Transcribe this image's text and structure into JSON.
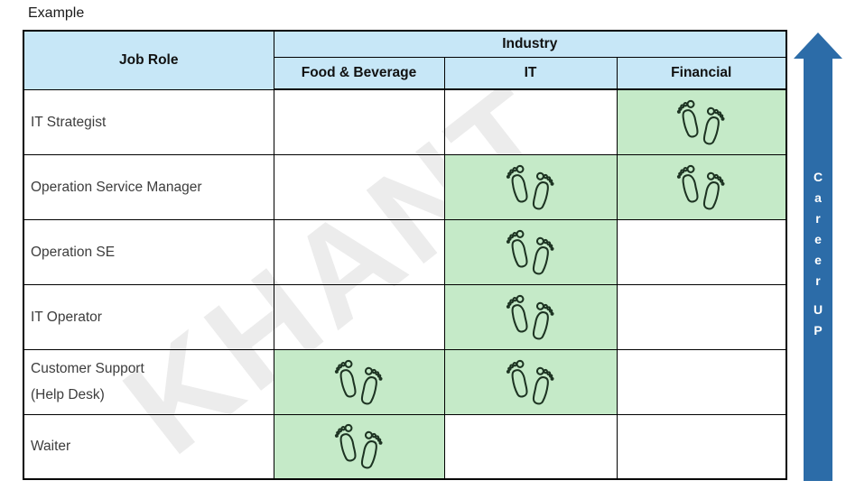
{
  "title": "Example",
  "table": {
    "job_role_header": "Job Role",
    "industry_header": "Industry",
    "industries": [
      "Food & Beverage",
      "IT",
      "Financial"
    ],
    "rows": [
      {
        "role": "IT Strategist",
        "lines": [
          "IT Strategist"
        ],
        "marks": [
          false,
          false,
          true
        ]
      },
      {
        "role": "Operation Service Manager",
        "lines": [
          "Operation Service Manager"
        ],
        "marks": [
          false,
          true,
          true
        ]
      },
      {
        "role": "Operation SE",
        "lines": [
          "Operation SE"
        ],
        "marks": [
          false,
          true,
          false
        ]
      },
      {
        "role": "IT Operator",
        "lines": [
          "IT Operator"
        ],
        "marks": [
          false,
          true,
          false
        ]
      },
      {
        "role": "Customer Support (Help Desk)",
        "lines": [
          "Customer Support",
          "(Help Desk)"
        ],
        "marks": [
          true,
          true,
          false
        ]
      },
      {
        "role": "Waiter",
        "lines": [
          "Waiter"
        ],
        "marks": [
          true,
          false,
          false
        ]
      }
    ],
    "mark_icon": "footprints-icon"
  },
  "career_arrow": {
    "word1": "Career",
    "word2": "UP"
  },
  "watermark": {
    "text": "KHANT"
  },
  "colors": {
    "header-blue": "#C7E7F7",
    "cell-green": "#C5EAC8",
    "arrow-blue": "#2C6CA8",
    "footprint-ink": "#1D3322",
    "watermark-gray": "#ECECEC",
    "text-dark": "#1A1A1A",
    "role-text": "#3D3D3D"
  }
}
